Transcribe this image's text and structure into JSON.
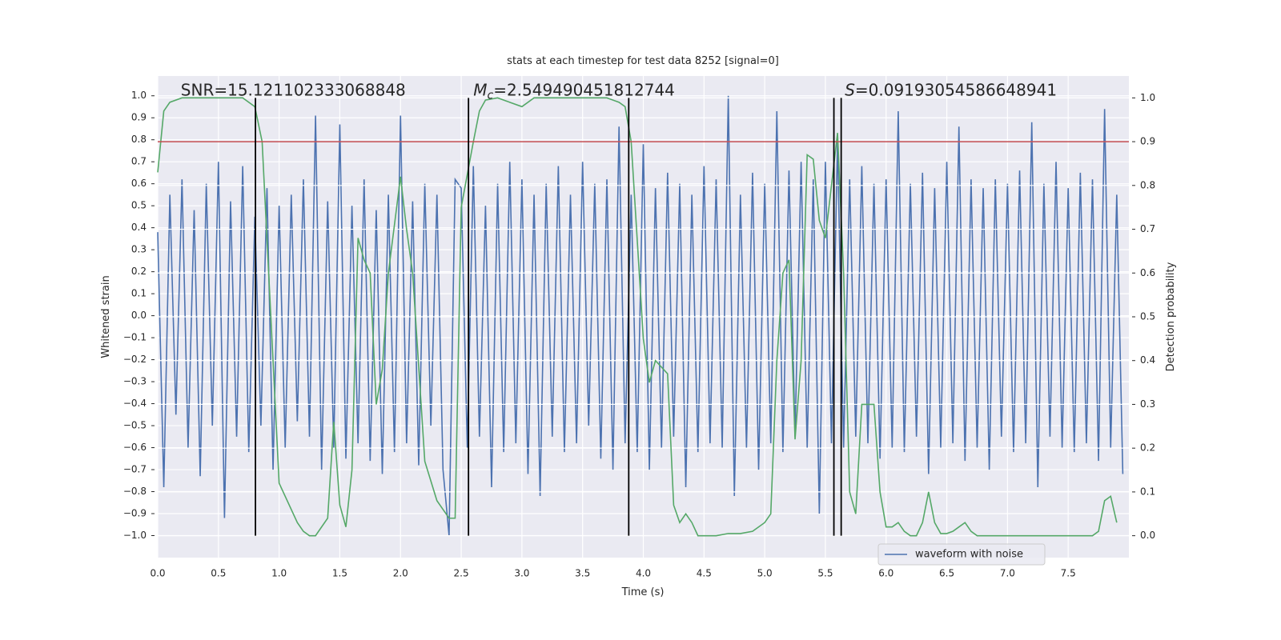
{
  "chart_data": {
    "type": "line",
    "title": "stats at each timestep for test data 8252 [signal=0]",
    "xlabel": "Time (s)",
    "ylabel": "Whitened strain",
    "y2label": "Detection probability",
    "xlim": [
      0,
      8
    ],
    "ylim": [
      -1.1,
      1.09
    ],
    "y2lim": [
      -0.05,
      1.05
    ],
    "grid": true,
    "legend": "lower right",
    "xticks": [
      {
        "value": 0,
        "label": "0.0"
      },
      0.5,
      {
        "value": 1,
        "label": "1.0"
      },
      1.5,
      {
        "value": 2,
        "label": "2.0"
      },
      2.5,
      {
        "value": 3,
        "label": "3.0"
      },
      3.5,
      {
        "value": 4,
        "label": "4.0"
      },
      4.5,
      {
        "value": 5,
        "label": "5.0"
      },
      5.5,
      {
        "value": 6,
        "label": "6.0"
      },
      6.5,
      {
        "value": 7,
        "label": "7.0"
      },
      7.5
    ],
    "yticks": [
      {
        "value": -1,
        "label": "−1.0"
      },
      {
        "value": -0.9,
        "label": "−0.9"
      },
      {
        "value": -0.8,
        "label": "−0.8"
      },
      {
        "value": -0.7,
        "label": "−0.7"
      },
      {
        "value": -0.6,
        "label": "−0.6"
      },
      {
        "value": -0.5,
        "label": "−0.5"
      },
      {
        "value": -0.4,
        "label": "−0.4"
      },
      {
        "value": -0.3,
        "label": "−0.3"
      },
      {
        "value": -0.2,
        "label": "−0.2"
      },
      {
        "value": -0.1,
        "label": "−0.1"
      },
      {
        "value": 0,
        "label": "0.0"
      },
      0.1,
      0.2,
      0.3,
      0.4,
      0.5,
      0.6,
      0.7,
      0.8,
      0.9,
      {
        "value": 1,
        "label": "1.0"
      }
    ],
    "y2ticks": [
      {
        "value": 0,
        "label": "0.0"
      },
      0.1,
      0.2,
      0.3,
      0.4,
      0.5,
      0.6,
      0.7,
      0.8,
      0.9,
      {
        "value": 1,
        "label": "1.0"
      }
    ],
    "series": [
      {
        "name": "waveform with noise",
        "color": "#4c72b0",
        "x": [
          0,
          0.05,
          0.1,
          0.15,
          0.2,
          0.25,
          0.3,
          0.35,
          0.4,
          0.45,
          0.5,
          0.55,
          0.6,
          0.65,
          0.7,
          0.75,
          0.8,
          0.85,
          0.9,
          0.95,
          1,
          1.05,
          1.1,
          1.15,
          1.2,
          1.25,
          1.3,
          1.35,
          1.4,
          1.45,
          1.5,
          1.55,
          1.6,
          1.65,
          1.7,
          1.75,
          1.8,
          1.85,
          1.9,
          1.95,
          2,
          2.05,
          2.1,
          2.15,
          2.2,
          2.25,
          2.3,
          2.35,
          2.4,
          2.45,
          2.5,
          2.55,
          2.6,
          2.65,
          2.7,
          2.75,
          2.8,
          2.85,
          2.9,
          2.95,
          3,
          3.05,
          3.1,
          3.15,
          3.2,
          3.25,
          3.3,
          3.35,
          3.4,
          3.45,
          3.5,
          3.55,
          3.6,
          3.65,
          3.7,
          3.75,
          3.8,
          3.85,
          3.9,
          3.95,
          4,
          4.05,
          4.1,
          4.15,
          4.2,
          4.25,
          4.3,
          4.35,
          4.4,
          4.45,
          4.5,
          4.55,
          4.6,
          4.65,
          4.7,
          4.75,
          4.8,
          4.85,
          4.9,
          4.95,
          5,
          5.05,
          5.1,
          5.15,
          5.2,
          5.25,
          5.3,
          5.35,
          5.4,
          5.45,
          5.5,
          5.55,
          5.6,
          5.65,
          5.7,
          5.75,
          5.8,
          5.85,
          5.9,
          5.95,
          6,
          6.05,
          6.1,
          6.15,
          6.2,
          6.25,
          6.3,
          6.35,
          6.4,
          6.45,
          6.5,
          6.55,
          6.6,
          6.65,
          6.7,
          6.75,
          6.8,
          6.85,
          6.9,
          6.95,
          7,
          7.05,
          7.1,
          7.15,
          7.2,
          7.25,
          7.3,
          7.35,
          7.4,
          7.45,
          7.5,
          7.55,
          7.6,
          7.65,
          7.7,
          7.75,
          7.8,
          7.85,
          7.9,
          7.95
        ],
        "values": [
          0.38,
          -0.78,
          0.55,
          -0.45,
          0.62,
          -0.6,
          0.48,
          -0.73,
          0.6,
          -0.5,
          0.7,
          -0.92,
          0.52,
          -0.55,
          0.68,
          -0.62,
          0.45,
          -0.5,
          0.58,
          -0.7,
          0.5,
          -0.6,
          0.55,
          -0.48,
          0.62,
          -0.55,
          0.91,
          -0.7,
          0.52,
          -0.6,
          0.87,
          -0.65,
          0.5,
          -0.58,
          0.62,
          -0.66,
          0.48,
          -0.72,
          0.55,
          -0.62,
          0.91,
          -0.58,
          0.52,
          -0.68,
          0.6,
          -0.5,
          0.55,
          -0.7,
          -1.0,
          0.62,
          0.58,
          -0.6,
          0.68,
          -0.55,
          0.5,
          -0.78,
          0.6,
          -0.62,
          0.7,
          -0.58,
          0.62,
          -0.72,
          0.55,
          -0.82,
          0.6,
          -0.55,
          0.68,
          -0.62,
          0.55,
          -0.58,
          0.7,
          -0.5,
          0.6,
          -0.65,
          0.62,
          -0.7,
          0.86,
          -0.58,
          0.55,
          -0.62,
          0.78,
          -0.7,
          0.58,
          -0.6,
          0.65,
          -0.55,
          0.6,
          -0.78,
          0.55,
          -0.62,
          0.68,
          -0.58,
          0.62,
          -0.6,
          1.0,
          -0.82,
          0.55,
          -0.6,
          0.65,
          -0.7,
          0.6,
          -0.58,
          0.93,
          -0.62,
          0.66,
          -0.55,
          0.7,
          -0.6,
          0.62,
          -0.9,
          0.7,
          -0.58,
          0.8,
          -0.6,
          0.62,
          -0.55,
          0.68,
          -0.58,
          0.6,
          -0.65,
          0.62,
          -0.6,
          0.93,
          -0.62,
          0.6,
          -0.55,
          0.65,
          -0.72,
          0.58,
          -0.6,
          0.7,
          -0.58,
          0.86,
          -0.66,
          0.62,
          -0.6,
          0.58,
          -0.7,
          0.62,
          -0.55,
          0.6,
          -0.62,
          0.66,
          -0.58,
          0.88,
          -0.78,
          0.6,
          -0.55,
          0.7,
          -0.6,
          0.58,
          -0.62,
          0.65,
          -0.58,
          0.62,
          -0.66,
          0.94,
          -0.6,
          0.55,
          -0.72
        ]
      }
    ],
    "probability": {
      "color": "#55a868",
      "axis": "y2",
      "x": [
        0,
        0.05,
        0.1,
        0.2,
        0.3,
        0.4,
        0.5,
        0.6,
        0.7,
        0.8,
        0.86,
        1,
        1.1,
        1.15,
        1.2,
        1.25,
        1.3,
        1.4,
        1.45,
        1.5,
        1.55,
        1.6,
        1.65,
        1.7,
        1.75,
        1.8,
        1.85,
        1.9,
        2,
        2.05,
        2.1,
        2.2,
        2.3,
        2.4,
        2.45,
        2.5,
        2.6,
        2.65,
        2.7,
        2.8,
        2.9,
        3,
        3.1,
        3.2,
        3.3,
        3.4,
        3.5,
        3.6,
        3.7,
        3.8,
        3.85,
        3.9,
        4,
        4.05,
        4.1,
        4.2,
        4.25,
        4.3,
        4.35,
        4.4,
        4.45,
        4.5,
        4.6,
        4.7,
        4.8,
        4.9,
        5,
        5.05,
        5.1,
        5.15,
        5.2,
        5.25,
        5.3,
        5.35,
        5.4,
        5.45,
        5.5,
        5.55,
        5.6,
        5.65,
        5.7,
        5.75,
        5.8,
        5.9,
        5.95,
        6,
        6.05,
        6.1,
        6.15,
        6.2,
        6.25,
        6.3,
        6.35,
        6.4,
        6.45,
        6.5,
        6.55,
        6.6,
        6.65,
        6.7,
        6.75,
        6.8,
        7,
        7.2,
        7.4,
        7.6,
        7.7,
        7.75,
        7.8,
        7.85,
        7.9
      ],
      "values": [
        0.83,
        0.97,
        0.99,
        1.0,
        1.0,
        1.0,
        1.0,
        1.0,
        1.0,
        0.98,
        0.9,
        0.12,
        0.06,
        0.03,
        0.01,
        0.0,
        0.0,
        0.04,
        0.26,
        0.07,
        0.02,
        0.15,
        0.68,
        0.63,
        0.6,
        0.3,
        0.38,
        0.6,
        0.82,
        0.7,
        0.6,
        0.17,
        0.08,
        0.04,
        0.04,
        0.75,
        0.9,
        0.97,
        0.995,
        1.0,
        0.99,
        0.98,
        1.0,
        1.0,
        1.0,
        1.0,
        1.0,
        1.0,
        1.0,
        0.99,
        0.98,
        0.9,
        0.45,
        0.35,
        0.4,
        0.37,
        0.07,
        0.03,
        0.05,
        0.03,
        0.0,
        0.0,
        0.0,
        0.005,
        0.005,
        0.01,
        0.03,
        0.05,
        0.4,
        0.6,
        0.63,
        0.22,
        0.4,
        0.87,
        0.86,
        0.72,
        0.68,
        0.8,
        0.92,
        0.6,
        0.1,
        0.05,
        0.3,
        0.3,
        0.1,
        0.02,
        0.02,
        0.03,
        0.01,
        0.0,
        0.0,
        0.03,
        0.1,
        0.03,
        0.005,
        0.005,
        0.01,
        0.02,
        0.03,
        0.01,
        0.0,
        0.0,
        0.0,
        0.0,
        0.0,
        0.0,
        0.0,
        0.01,
        0.08,
        0.09,
        0.03
      ]
    },
    "hlines": [
      {
        "y": 0.9,
        "axis": "y2",
        "color": "#c44e52"
      }
    ],
    "vlines": {
      "x": [
        0.805,
        2.56,
        3.88,
        5.57,
        5.63
      ],
      "ymin": 0,
      "ymax": 1,
      "axis": "y2",
      "color": "#000000"
    },
    "annotations": [
      {
        "x": 0.19,
        "y": 1.0,
        "parts": [
          "SNR=15.121102333068848"
        ]
      },
      {
        "x": 2.6,
        "y": 1.0,
        "parts": [
          "M",
          "c",
          "=2.549490451812744"
        ]
      },
      {
        "x": 5.66,
        "y": 1.0,
        "parts": [
          "S",
          "=0.09193054586648941"
        ]
      }
    ]
  }
}
